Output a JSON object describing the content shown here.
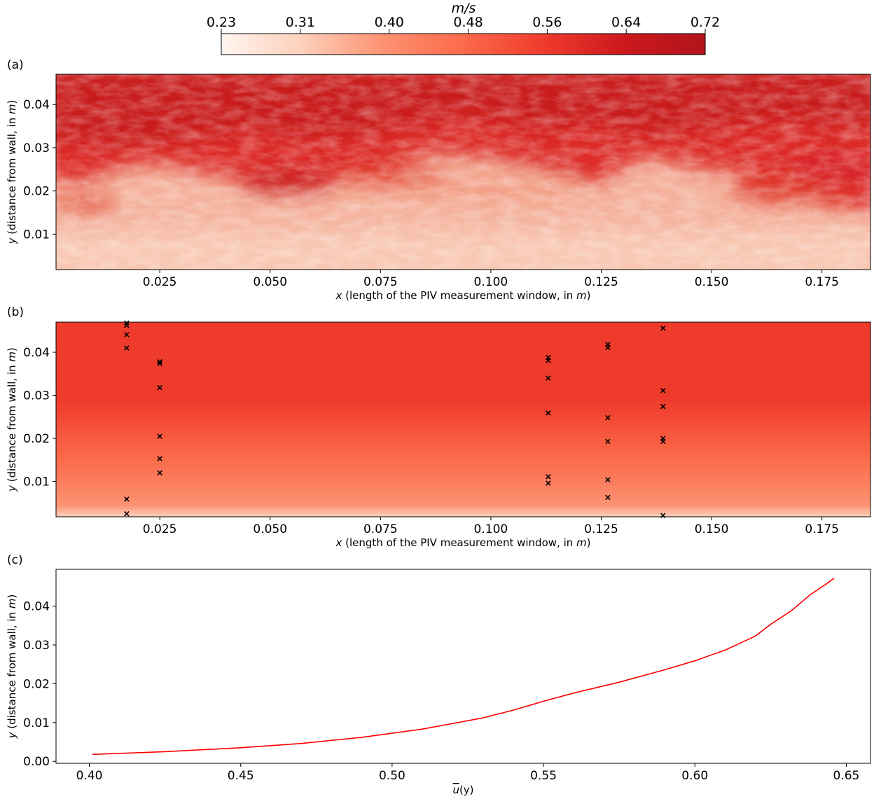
{
  "colorbar": {
    "unit_label": "m/s",
    "ticks": [
      "0.23",
      "0.31",
      "0.40",
      "0.48",
      "0.56",
      "0.64",
      "0.72"
    ],
    "range": [
      0.23,
      0.72
    ],
    "colormap": "Reds",
    "colors": [
      "#fff5f0",
      "#fdd0bb",
      "#fc9272",
      "#fb6a4a",
      "#ef3b2c",
      "#cb181d",
      "#b2141c"
    ]
  },
  "chart_data": [
    {
      "type": "heatmap",
      "panel_label": "(a)",
      "xlabel": "x (length of the PIV measurement window, in m)",
      "ylabel": "y (distance from wall, in m)",
      "xlim": [
        0.0015,
        0.186
      ],
      "ylim": [
        0.0018,
        0.047
      ],
      "x_ticks": [
        0.025,
        0.05,
        0.075,
        0.1,
        0.125,
        0.15,
        0.175
      ],
      "x_tick_labels": [
        "0.025",
        "0.050",
        "0.075",
        "0.100",
        "0.125",
        "0.150",
        "0.175"
      ],
      "y_ticks": [
        0.01,
        0.02,
        0.03,
        0.04
      ],
      "y_tick_labels": [
        "0.01",
        "0.02",
        "0.03",
        "0.04"
      ],
      "description": "Instantaneous velocity field; darker red (faster, ~0.64–0.72 m/s) near top, lighter (slower, ~0.35–0.45 m/s) near wall with a wavy interface around y≈0.02–0.03."
    },
    {
      "type": "heatmap",
      "panel_label": "(b)",
      "xlabel": "x (length of the PIV measurement window, in m)",
      "ylabel": "y (distance from wall, in m)",
      "xlim": [
        0.0015,
        0.186
      ],
      "ylim": [
        0.0018,
        0.047
      ],
      "x_ticks": [
        0.025,
        0.05,
        0.075,
        0.1,
        0.125,
        0.15,
        0.175
      ],
      "x_tick_labels": [
        "0.025",
        "0.050",
        "0.075",
        "0.100",
        "0.125",
        "0.150",
        "0.175"
      ],
      "y_ticks": [
        0.01,
        0.02,
        0.03,
        0.04
      ],
      "y_tick_labels": [
        "0.01",
        "0.02",
        "0.03",
        "0.04"
      ],
      "markers": {
        "symbol": "x",
        "points": [
          [
            0.0175,
            0.0468
          ],
          [
            0.0175,
            0.0462
          ],
          [
            0.0175,
            0.0441
          ],
          [
            0.0175,
            0.041
          ],
          [
            0.0175,
            0.0059
          ],
          [
            0.0175,
            0.0025
          ],
          [
            0.025,
            0.0378
          ],
          [
            0.025,
            0.0374
          ],
          [
            0.025,
            0.0318
          ],
          [
            0.025,
            0.0205
          ],
          [
            0.025,
            0.0153
          ],
          [
            0.025,
            0.012
          ],
          [
            0.113,
            0.0388
          ],
          [
            0.113,
            0.0381
          ],
          [
            0.113,
            0.034
          ],
          [
            0.113,
            0.0259
          ],
          [
            0.113,
            0.0111
          ],
          [
            0.113,
            0.0096
          ],
          [
            0.1265,
            0.0418
          ],
          [
            0.1265,
            0.0411
          ],
          [
            0.1265,
            0.0248
          ],
          [
            0.1265,
            0.0193
          ],
          [
            0.1265,
            0.0104
          ],
          [
            0.1265,
            0.0063
          ],
          [
            0.139,
            0.0456
          ],
          [
            0.139,
            0.0311
          ],
          [
            0.139,
            0.0274
          ],
          [
            0.139,
            0.02
          ],
          [
            0.139,
            0.0193
          ],
          [
            0.139,
            0.0021
          ]
        ]
      }
    },
    {
      "type": "line",
      "panel_label": "(c)",
      "xlabel": "u(y)",
      "ylabel": "y (distance from wall, in m)",
      "xlim": [
        0.389,
        0.658
      ],
      "ylim": [
        -0.0005,
        0.0495
      ],
      "x_ticks": [
        0.4,
        0.45,
        0.5,
        0.55,
        0.6,
        0.65
      ],
      "x_tick_labels": [
        "0.40",
        "0.45",
        "0.50",
        "0.55",
        "0.60",
        "0.65"
      ],
      "y_ticks": [
        0.0,
        0.01,
        0.02,
        0.03,
        0.04
      ],
      "y_tick_labels": [
        "0.00",
        "0.01",
        "0.02",
        "0.03",
        "0.04"
      ],
      "color": "#ff0000",
      "x": [
        0.401,
        0.425,
        0.45,
        0.47,
        0.49,
        0.51,
        0.53,
        0.54,
        0.55,
        0.56,
        0.575,
        0.59,
        0.6,
        0.61,
        0.615,
        0.62,
        0.625,
        0.632,
        0.638,
        0.643,
        0.646
      ],
      "y": [
        0.0018,
        0.0025,
        0.0035,
        0.0046,
        0.0062,
        0.0083,
        0.0112,
        0.0132,
        0.0155,
        0.0176,
        0.0204,
        0.0236,
        0.0259,
        0.0287,
        0.0305,
        0.0323,
        0.0353,
        0.0389,
        0.0429,
        0.0455,
        0.0472
      ]
    }
  ]
}
